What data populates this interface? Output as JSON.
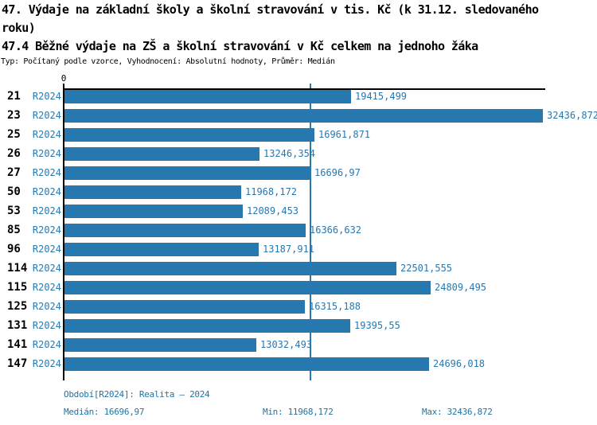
{
  "header": {
    "title_lines": [
      "47. Výdaje na základní školy a školní stravování v tis. Kč (k 31.12. sledovaného",
      "roku)"
    ],
    "subtitle": "47.4 Běžné výdaje na ZŠ a školní stravování v Kč celkem na jednoho žáka",
    "meta": "Typ: Počítaný podle vzorce, Vyhodnocení: Absolutní hodnoty, Průměr: Medián"
  },
  "chart_data": {
    "type": "bar",
    "orientation": "horizontal",
    "title": "47.4 Běžné výdaje na ZŠ a školní stravování v Kč celkem na jednoho žáka",
    "series_label": "R2024",
    "categories": [
      "21",
      "23",
      "25",
      "26",
      "27",
      "50",
      "53",
      "85",
      "96",
      "114",
      "115",
      "125",
      "131",
      "141",
      "147"
    ],
    "values": [
      19415.499,
      32436.872,
      16961.871,
      13246.354,
      16696.97,
      11968.172,
      12089.453,
      16366.632,
      13187.911,
      22501.555,
      24809.495,
      16315.188,
      19395.55,
      13032.493,
      24696.018
    ],
    "value_labels": [
      "19415,499",
      "32436,872",
      "16961,871",
      "13246,354",
      "16696,97",
      "11968,172",
      "12089,453",
      "16366,632",
      "13187,911",
      "22501,555",
      "24809,495",
      "16315,188",
      "19395,55",
      "13032,493",
      "24696,018"
    ],
    "axis_origin_label": "0",
    "xlim": [
      0,
      32436.872
    ],
    "median_value": 16696.97,
    "grid": false,
    "legend_position": "none",
    "bar_color": "#2878b0",
    "value_text_color": "#2878b0",
    "series_text_color": "#2878b0",
    "median_line_color": "#2878b0"
  },
  "footer": {
    "period": "Období[R2024]: Realita – 2024",
    "median": "Medián: 16696,97",
    "min": "Min: 11968,172",
    "max": "Max: 32436,872",
    "text_color": "#1d74a4"
  }
}
